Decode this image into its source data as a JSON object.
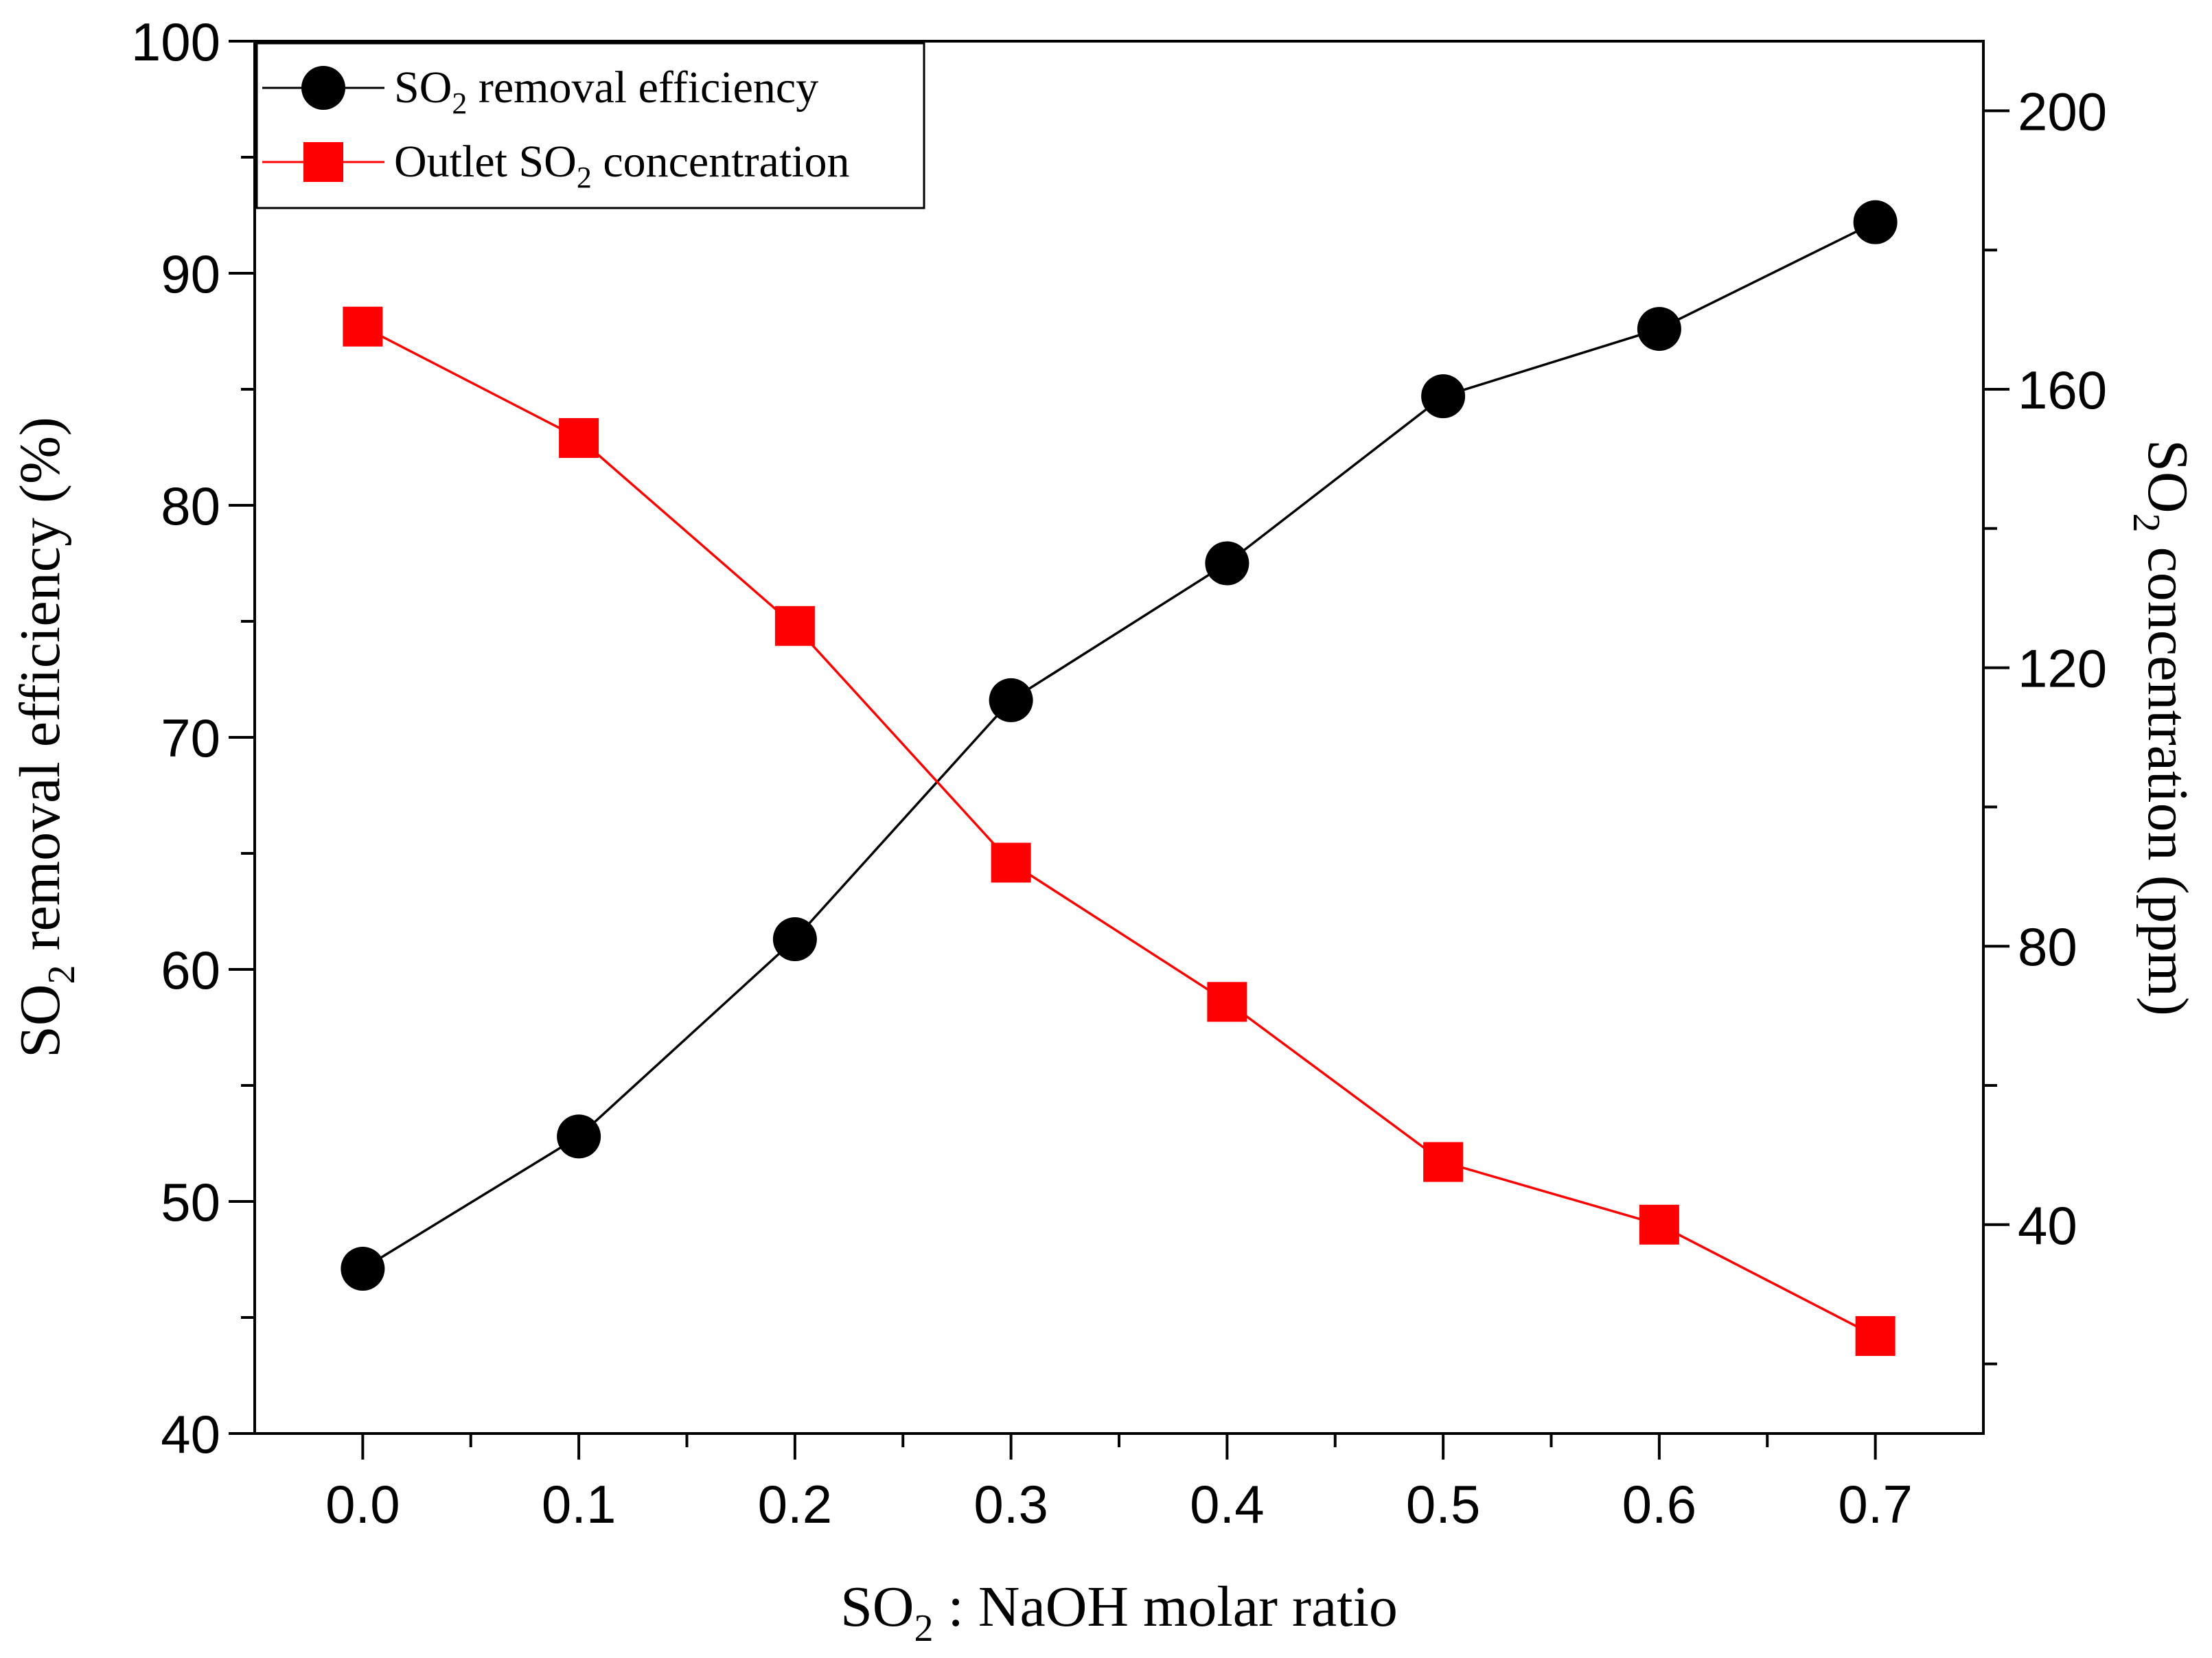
{
  "chart_data": {
    "type": "line",
    "x": [
      0.0,
      0.1,
      0.2,
      0.3,
      0.4,
      0.5,
      0.6,
      0.7
    ],
    "x_tick_labels": [
      "0.0",
      "0.1",
      "0.2",
      "0.3",
      "0.4",
      "0.5",
      "0.6",
      "0.7"
    ],
    "xlabel": {
      "main": "SO",
      "sub": "2",
      "rest": " : NaOH molar ratio"
    },
    "xlim": [
      -0.05,
      0.75
    ],
    "y_left": {
      "label": {
        "main": "SO",
        "sub": "2",
        "rest": " removal efficiency (%)"
      },
      "lim": [
        40,
        100
      ],
      "ticks": [
        40,
        50,
        60,
        70,
        80,
        90,
        100
      ],
      "tick_labels": [
        "40",
        "50",
        "60",
        "70",
        "80",
        "90",
        "100"
      ]
    },
    "y_right": {
      "label": {
        "main": "SO",
        "sub": "2",
        "rest": " concentration (ppm)"
      },
      "lim": [
        10,
        210
      ],
      "ticks": [
        40,
        80,
        120,
        160,
        200
      ],
      "tick_labels": [
        "40",
        "80",
        "120",
        "160",
        "200"
      ]
    },
    "series": [
      {
        "name": "SO2 removal efficiency",
        "legend": {
          "main": "SO",
          "sub": "2",
          "rest": " removal efficiency"
        },
        "axis": "left",
        "marker": "circle",
        "color": "#000000",
        "values": [
          47.1,
          52.8,
          61.3,
          71.6,
          77.5,
          84.7,
          87.6,
          92.2
        ]
      },
      {
        "name": "Outlet SO2 concentration",
        "legend": {
          "pre": "Outlet SO",
          "sub": "2",
          "rest": " concentration"
        },
        "axis": "right",
        "marker": "square",
        "color": "#ff0000",
        "values": [
          169,
          153,
          126,
          92,
          72,
          49,
          40,
          24
        ]
      }
    ],
    "legend_position": "top-left"
  }
}
